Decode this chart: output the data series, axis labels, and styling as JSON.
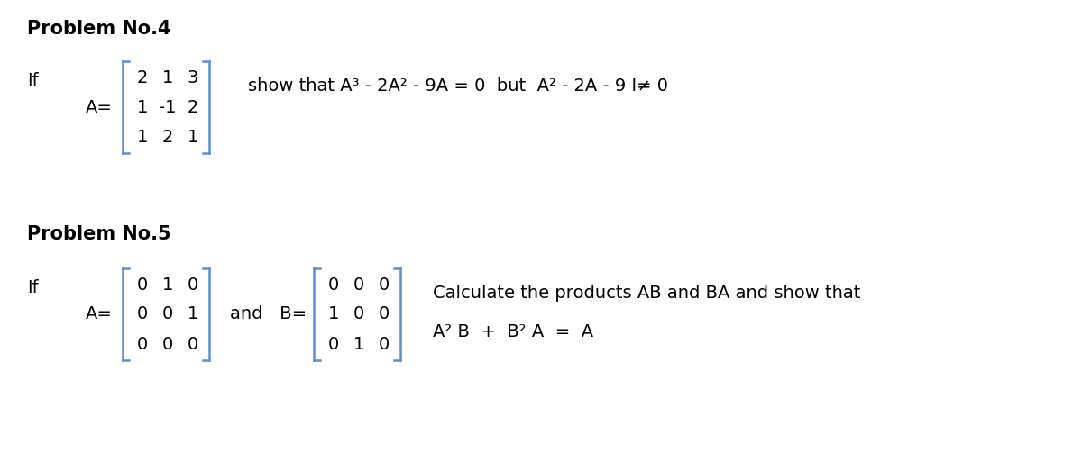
{
  "bg_color": "#ffffff",
  "text_color": "#000000",
  "bracket_color": "#5b8fd4",
  "title_fontsize": 15,
  "text_fontsize": 14,
  "matrix_fontsize": 14,
  "prob4_title": "Problem No.4",
  "prob5_title": "Problem No.5",
  "prob4_matrix": [
    [
      "2",
      "1",
      "3"
    ],
    [
      "1",
      "-1",
      "2"
    ],
    [
      "1",
      "2",
      "1"
    ]
  ],
  "prob4_statement": "show that A³ - 2A² - 9A = 0  but  A² - 2A - 9 I≠ 0",
  "prob5_A_matrix": [
    [
      "0",
      "1",
      "0"
    ],
    [
      "0",
      "0",
      "1"
    ],
    [
      "0",
      "0",
      "0"
    ]
  ],
  "prob5_B_matrix": [
    [
      "0",
      "0",
      "0"
    ],
    [
      "1",
      "0",
      "0"
    ],
    [
      "0",
      "1",
      "0"
    ]
  ],
  "prob5_calc": "Calculate the products AB and BA and show that",
  "prob5_result": "A² B  +  B² A  =  A"
}
